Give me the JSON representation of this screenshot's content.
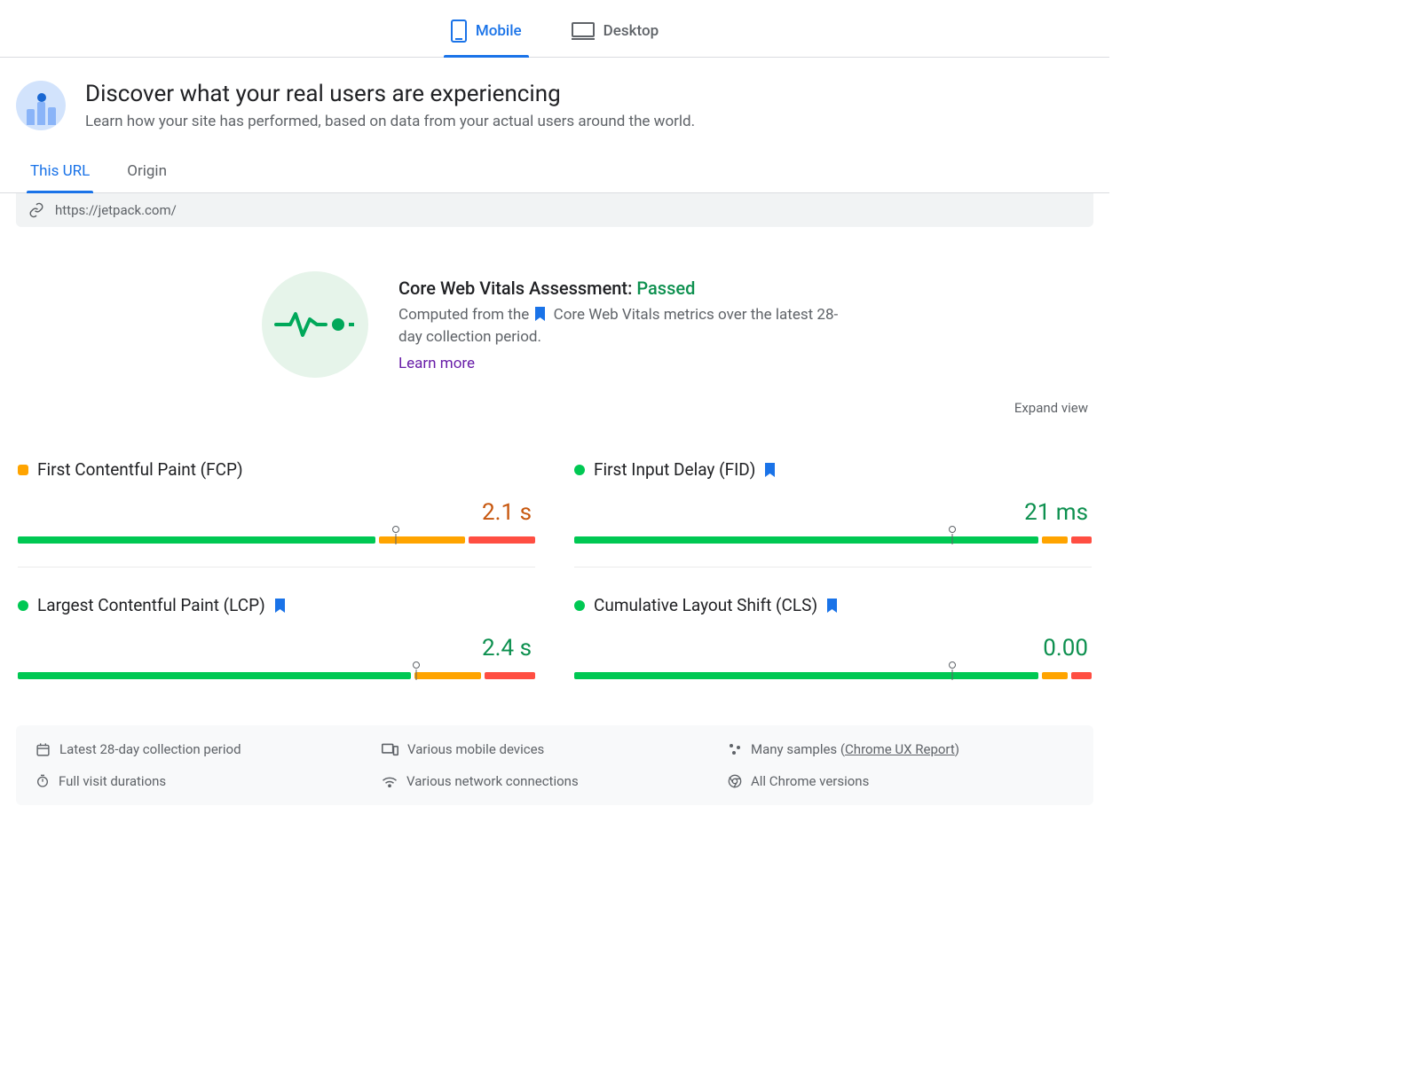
{
  "colors": {
    "primary": "#1a73e8",
    "text": "#202124",
    "muted": "#5f6368",
    "green": "#0d904f",
    "orange": "#c7570e",
    "red": "#e8352e",
    "green_bar": "#00c853",
    "orange_bar": "#ffa400",
    "red_bar": "#ff4e42",
    "purple_link": "#681da8",
    "mint_bg": "#e6f4ea",
    "grey_bg": "#f1f3f4",
    "footer_bg": "#f8f9fa",
    "border": "#dadce0"
  },
  "device_tabs": {
    "mobile": "Mobile",
    "desktop": "Desktop",
    "active": "mobile"
  },
  "header": {
    "title": "Discover what your real users are experiencing",
    "subtitle": "Learn how your site has performed, based on data from your actual users around the world."
  },
  "scope_tabs": {
    "this_url": "This URL",
    "origin": "Origin",
    "active": "this_url"
  },
  "url": "https://jetpack.com/",
  "assessment": {
    "title_prefix": "Core Web Vitals Assessment: ",
    "status": "Passed",
    "status_color": "#0d904f",
    "desc_before": "Computed from the",
    "desc_after": "Core Web Vitals metrics over the latest 28-day collection period.",
    "learn_more": "Learn more"
  },
  "expand_label": "Expand view",
  "metrics": [
    {
      "id": "fcp",
      "label": "First Contentful Paint (FCP)",
      "status_shape": "square",
      "status_color": "#ffa400",
      "bookmark": false,
      "value": "2.1 s",
      "value_color": "#c7570e",
      "segments": [
        {
          "pct": 70,
          "color": "#00c853"
        },
        {
          "pct": 17,
          "color": "#ffa400"
        },
        {
          "pct": 13,
          "color": "#ff4e42"
        }
      ],
      "marker_pct": 73
    },
    {
      "id": "fid",
      "label": "First Input Delay (FID)",
      "status_shape": "circle",
      "status_color": "#00c853",
      "bookmark": true,
      "value": "21 ms",
      "value_color": "#0d904f",
      "segments": [
        {
          "pct": 91,
          "color": "#00c853"
        },
        {
          "pct": 5,
          "color": "#ffa400"
        },
        {
          "pct": 4,
          "color": "#ff4e42"
        }
      ],
      "marker_pct": 73
    },
    {
      "id": "lcp",
      "label": "Largest Contentful Paint (LCP)",
      "status_shape": "circle",
      "status_color": "#00c853",
      "bookmark": true,
      "value": "2.4 s",
      "value_color": "#0d904f",
      "segments": [
        {
          "pct": 77,
          "color": "#00c853"
        },
        {
          "pct": 13,
          "color": "#ffa400"
        },
        {
          "pct": 10,
          "color": "#ff4e42"
        }
      ],
      "marker_pct": 77
    },
    {
      "id": "cls",
      "label": "Cumulative Layout Shift (CLS)",
      "status_shape": "circle",
      "status_color": "#00c853",
      "bookmark": true,
      "value": "0.00",
      "value_color": "#0d904f",
      "segments": [
        {
          "pct": 91,
          "color": "#00c853"
        },
        {
          "pct": 5,
          "color": "#ffa400"
        },
        {
          "pct": 4,
          "color": "#ff4e42"
        }
      ],
      "marker_pct": 73
    }
  ],
  "footer": {
    "period": "Latest 28-day collection period",
    "devices": "Various mobile devices",
    "samples_prefix": "Many samples (",
    "samples_link": "Chrome UX Report",
    "samples_suffix": ")",
    "durations": "Full visit durations",
    "connections": "Various network connections",
    "versions": "All Chrome versions"
  }
}
